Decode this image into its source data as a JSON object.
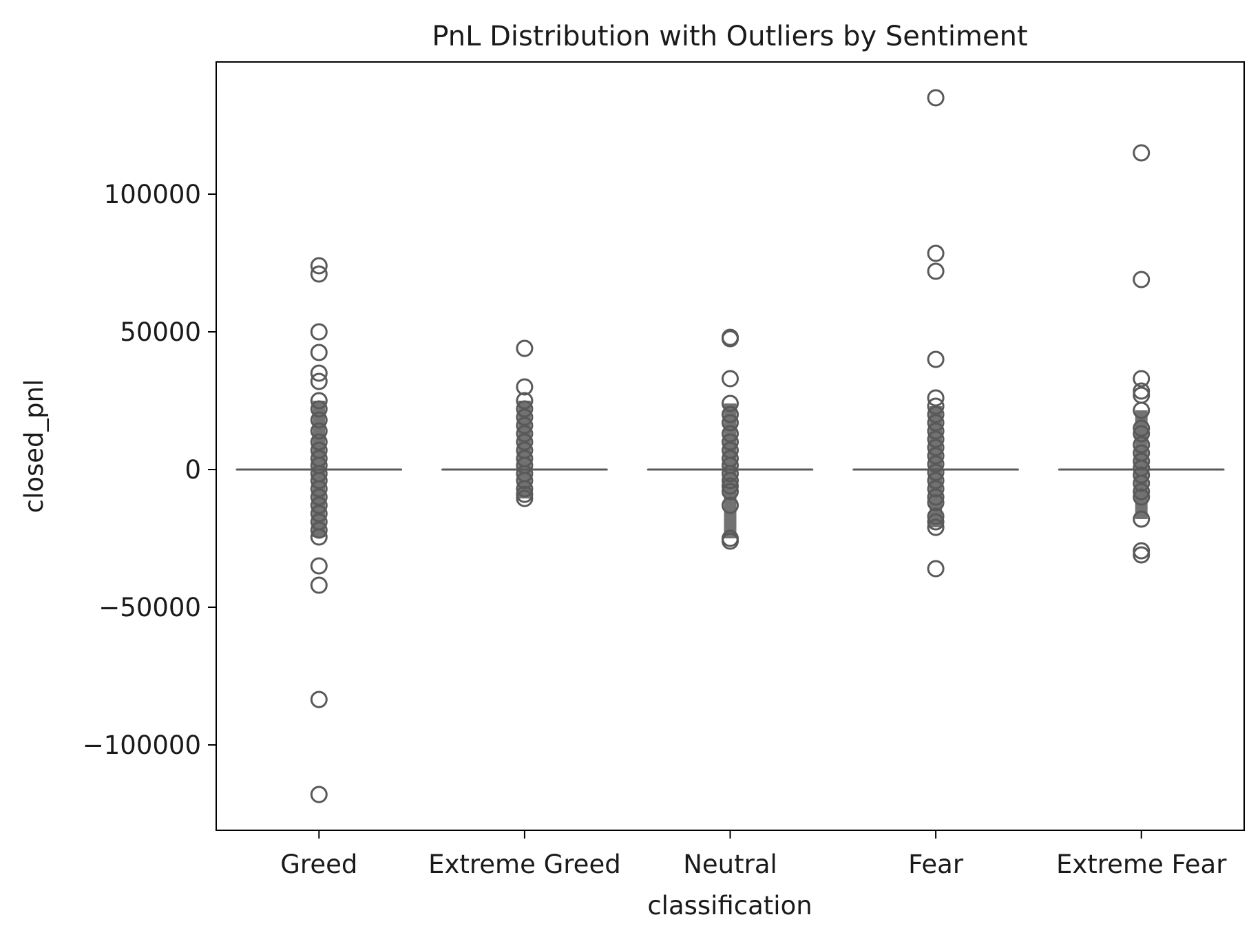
{
  "chart_data": {
    "type": "box",
    "title": "PnL Distribution with Outliers by Sentiment",
    "xlabel": "classification",
    "ylabel": "closed_pnl",
    "ylim": [
      -131000,
      148000
    ],
    "yticks": [
      -100000,
      -50000,
      0,
      50000,
      100000
    ],
    "ytick_labels": [
      "−100000",
      "−50000",
      "0",
      "50000",
      "100000"
    ],
    "grid": false,
    "legend": "none",
    "color": "#595959",
    "categories": [
      "Greed",
      "Extreme Greed",
      "Neutral",
      "Fear",
      "Extreme Fear"
    ],
    "boxes": [
      {
        "category": "Greed",
        "q1": 0,
        "median": 0,
        "q3": 0,
        "whisker_low": 0,
        "whisker_high": 0,
        "outliers": [
          74000,
          71000,
          50000,
          42500,
          35000,
          32000,
          25000,
          22000,
          18000,
          14000,
          10000,
          7000,
          4000,
          1500,
          -1500,
          -4000,
          -7000,
          -10000,
          -13000,
          -16000,
          -19000,
          -22000,
          -24500,
          -35000,
          -42000,
          -83500,
          -118000
        ]
      },
      {
        "category": "Extreme Greed",
        "q1": 0,
        "median": 0,
        "q3": 0,
        "whisker_low": 0,
        "whisker_high": 0,
        "outliers": [
          44000,
          30000,
          25000,
          22000,
          19000,
          16000,
          13000,
          10000,
          7000,
          4000,
          1500,
          -1500,
          -4000,
          -7000,
          -9000,
          -10500
        ]
      },
      {
        "category": "Neutral",
        "q1": 0,
        "median": 0,
        "q3": 0,
        "whisker_low": 0,
        "whisker_high": 0,
        "outliers": [
          48000,
          47500,
          33000,
          24000,
          20000,
          17000,
          13000,
          10000,
          7000,
          4000,
          1500,
          -1500,
          -4000,
          -6000,
          -8000,
          -13000,
          -25000,
          -26000
        ]
      },
      {
        "category": "Fear",
        "q1": 0,
        "median": 0,
        "q3": 0,
        "whisker_low": 0,
        "whisker_high": 0,
        "outliers": [
          135000,
          78500,
          72000,
          40000,
          26000,
          23000,
          20000,
          17000,
          14000,
          11000,
          8000,
          5000,
          2000,
          -1000,
          -4000,
          -7000,
          -10000,
          -12000,
          -17000,
          -19000,
          -21000,
          -36000
        ]
      },
      {
        "category": "Extreme Fear",
        "q1": 0,
        "median": 0,
        "q3": 0,
        "whisker_low": 0,
        "whisker_high": 0,
        "outliers": [
          115000,
          69000,
          33000,
          28500,
          27000,
          21500,
          15000,
          13000,
          9000,
          6000,
          3000,
          500,
          -2000,
          -5000,
          -8000,
          -10000,
          -18000,
          -29500,
          -31000
        ]
      }
    ]
  }
}
